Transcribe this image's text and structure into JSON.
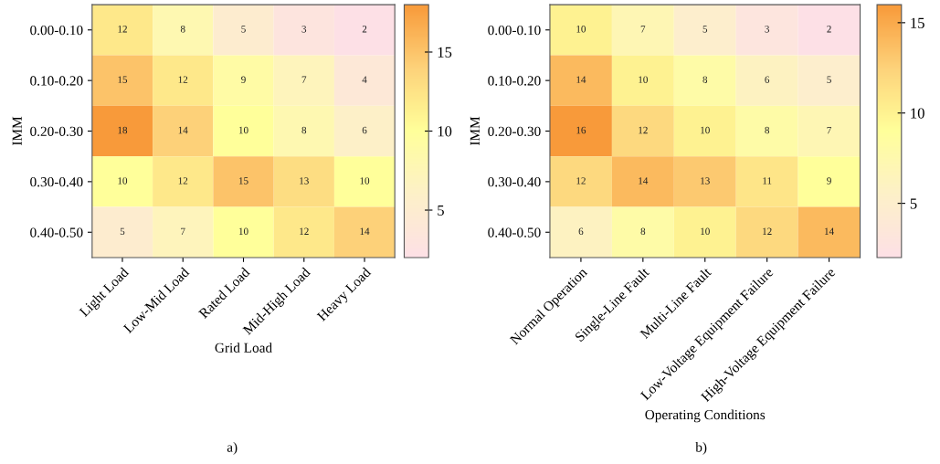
{
  "chart_data": [
    {
      "type": "heatmap",
      "xlabel": "Grid Load",
      "ylabel": "IMM",
      "annotations": [
        "a)"
      ],
      "data_labels": true,
      "categories": [
        "Light Load",
        "Low-Mid Load",
        "Rated Load",
        "Mid-High Load",
        "Heavy Load"
      ],
      "y_categories": [
        "0.00-0.10",
        "0.10-0.20",
        "0.20-0.30",
        "0.30-0.40",
        "0.40-0.50"
      ],
      "cells": [
        [
          12,
          8,
          5,
          3,
          2
        ],
        [
          15,
          12,
          9,
          7,
          4
        ],
        [
          18,
          14,
          10,
          8,
          6
        ],
        [
          10,
          12,
          15,
          13,
          10
        ],
        [
          5,
          7,
          10,
          12,
          14
        ]
      ],
      "clim": [
        2,
        18
      ],
      "cticks": [
        5,
        10,
        15
      ]
    },
    {
      "type": "heatmap",
      "xlabel": "Operating Conditions",
      "ylabel": "IMM",
      "annotations": [
        "b)"
      ],
      "data_labels": true,
      "categories": [
        "Normal Operation",
        "Single-Line Fault",
        "Multi-Line Fault",
        "Low-Voltage Equipment Failure",
        "High-Voltage Equipment Failure"
      ],
      "y_categories": [
        "0.00-0.10",
        "0.10-0.20",
        "0.20-0.30",
        "0.30-0.40",
        "0.40-0.50"
      ],
      "cells": [
        [
          10,
          7,
          5,
          3,
          2
        ],
        [
          14,
          10,
          8,
          6,
          5
        ],
        [
          16,
          12,
          10,
          8,
          7
        ],
        [
          12,
          14,
          13,
          11,
          9
        ],
        [
          6,
          8,
          10,
          12,
          14
        ]
      ],
      "clim": [
        2,
        16
      ],
      "cticks": [
        5,
        10,
        15
      ]
    }
  ]
}
